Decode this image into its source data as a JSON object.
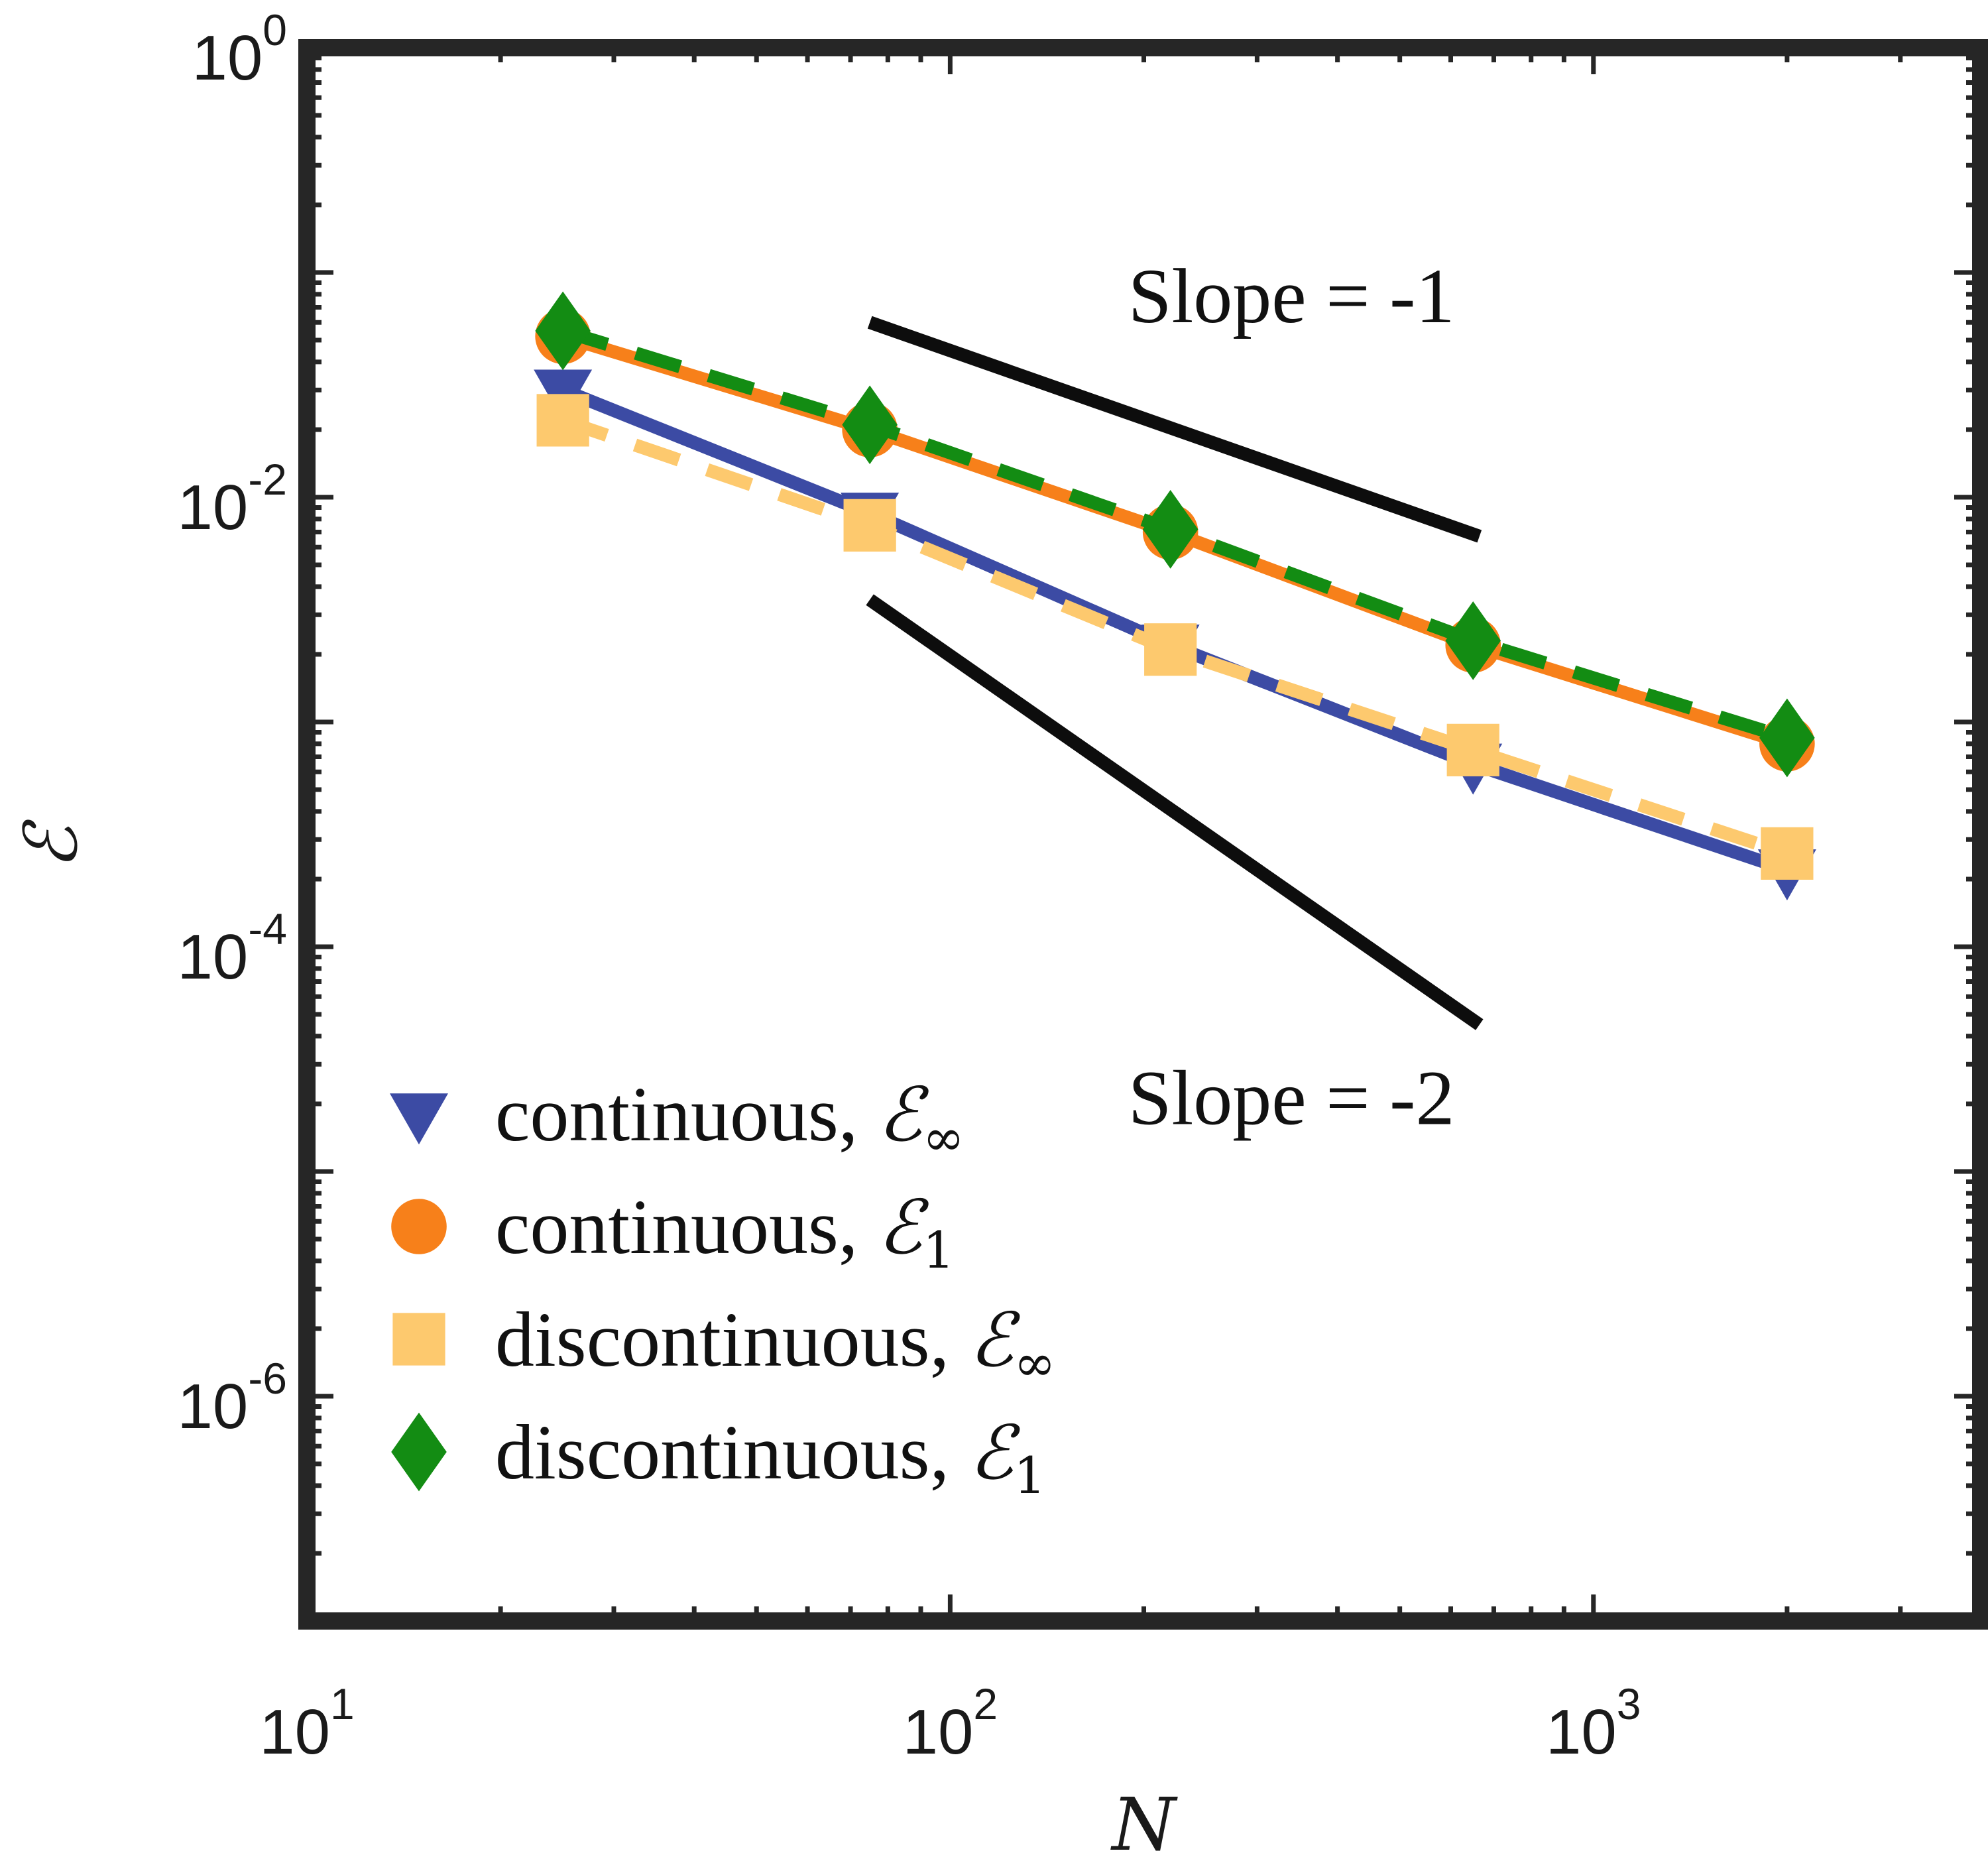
{
  "chart_data": {
    "type": "line",
    "title": "",
    "xlabel": "N",
    "ylabel": "ℰ",
    "xscale": "log",
    "yscale": "log",
    "xlim": [
      10,
      4000
    ],
    "ylim": [
      1e-07,
      1
    ],
    "x_ticks": [
      {
        "base": "10",
        "exp": "1"
      },
      {
        "base": "10",
        "exp": "2"
      },
      {
        "base": "10",
        "exp": "3"
      }
    ],
    "y_ticks": [
      {
        "base": "10",
        "exp": "0"
      },
      {
        "base": "10",
        "exp": "-2"
      },
      {
        "base": "10",
        "exp": "-4"
      },
      {
        "base": "10",
        "exp": "-6"
      }
    ],
    "x": [
      25,
      75,
      220,
      650,
      2000
    ],
    "series": [
      {
        "name": "continuous, ℰ∞",
        "text": "continuous, ",
        "sym": "ℰ",
        "sub": "∞",
        "color": "#3c4ba4",
        "marker": "triangle-down",
        "line": "solid",
        "values": [
          0.03,
          0.0085,
          0.0022,
          0.00065,
          0.00022
        ]
      },
      {
        "name": "continuous, ℰ1",
        "text": "continuous, ",
        "sym": "ℰ",
        "sub": "1",
        "color": "#f7801a",
        "marker": "circle",
        "line": "solid",
        "values": [
          0.052,
          0.02,
          0.007,
          0.0022,
          0.0008
        ]
      },
      {
        "name": "discontinuous, ℰ∞",
        "text": "discontinuous, ",
        "sym": "ℰ",
        "sub": "∞",
        "color": "#fdc96e",
        "marker": "square",
        "line": "dashed",
        "values": [
          0.022,
          0.0075,
          0.0021,
          0.00075,
          0.00026
        ]
      },
      {
        "name": "discontinuous, ℰ1",
        "text": "discontinuous, ",
        "sym": "ℰ",
        "sub": "1",
        "color": "#138c13",
        "marker": "diamond",
        "line": "dashed",
        "values": [
          0.055,
          0.021,
          0.0072,
          0.0023,
          0.00085
        ]
      }
    ],
    "reference_lines": [
      {
        "label": "Slope = -1",
        "slope": -1,
        "x": [
          75,
          665
        ],
        "y": [
          0.06,
          0.0067
        ]
      },
      {
        "label": "Slope = -2",
        "slope": -2,
        "x": [
          75,
          665
        ],
        "y": [
          0.0035,
          4.5e-05
        ]
      }
    ],
    "legend_position": "bottom-left",
    "grid": false
  }
}
